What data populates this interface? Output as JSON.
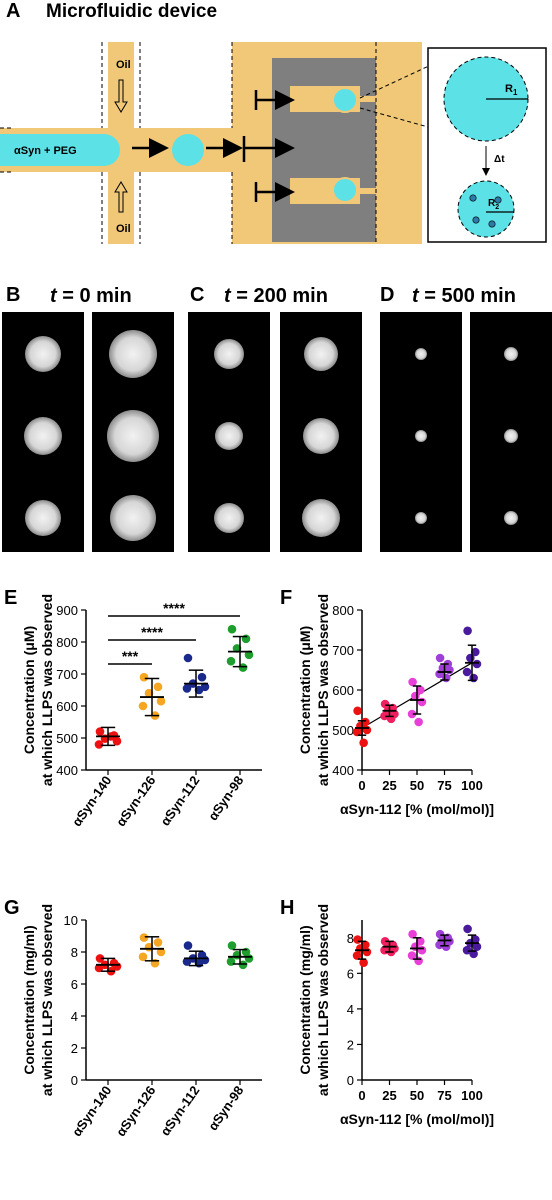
{
  "panel_a": {
    "letter": "A",
    "title": "Microfluidic device",
    "labels": {
      "oil_top": "Oil",
      "oil_bottom": "Oil",
      "inlet": "αSyn + PEG",
      "r1": "R",
      "r1_sub": "1",
      "r2": "R",
      "r2_sub": "2",
      "dt": "Δt"
    },
    "colors": {
      "channel": "#F0C878",
      "droplet": "#5CE1E6",
      "chamber": "#7F7F7F"
    }
  },
  "panel_b": {
    "letter": "B",
    "t_var": "t",
    "t_rest": " = 0 min",
    "droplet_sizes": [
      [
        18,
        24
      ],
      [
        19,
        26
      ],
      [
        18,
        23
      ]
    ]
  },
  "panel_c": {
    "letter": "C",
    "t_var": "t",
    "t_rest": " = 200 min",
    "droplet_sizes": [
      [
        15,
        17
      ],
      [
        14,
        18
      ],
      [
        15,
        19
      ]
    ]
  },
  "panel_d": {
    "letter": "D",
    "t_var": "t",
    "t_rest": " = 500 min",
    "droplet_sizes": [
      [
        6,
        7
      ],
      [
        6,
        7
      ],
      [
        6,
        7
      ]
    ]
  },
  "chart_data": [
    {
      "id": "E",
      "letter": "E",
      "type": "scatter",
      "ylabel_line1": "Concentration (μM)",
      "ylabel_line2": "at which LLPS was observed",
      "ylim": [
        400,
        900
      ],
      "yticks": [
        400,
        500,
        600,
        700,
        800,
        900
      ],
      "categories": [
        "αSyn-140",
        "αSyn-126",
        "αSyn-112",
        "αSyn-98"
      ],
      "colors": [
        "#EE1111",
        "#F5A623",
        "#1A2A8C",
        "#1E9E2E"
      ],
      "points": [
        [
          520,
          508,
          498,
          490,
          480,
          505
        ],
        [
          690,
          660,
          640,
          615,
          600,
          570
        ],
        [
          750,
          690,
          670,
          660,
          655,
          650
        ],
        [
          840,
          810,
          780,
          760,
          740,
          720
        ]
      ],
      "means": [
        505,
        628,
        670,
        770
      ],
      "sds": [
        28,
        58,
        42,
        47
      ],
      "significance": [
        {
          "from": 0,
          "to": 3,
          "label": "****"
        },
        {
          "from": 0,
          "to": 2,
          "label": "****"
        },
        {
          "from": 0,
          "to": 1,
          "label": "***"
        }
      ]
    },
    {
      "id": "F",
      "letter": "F",
      "type": "scatter",
      "ylabel_line1": "Concentration (μM)",
      "ylabel_line2": "at which LLPS was observed",
      "xlabel": "αSyn-112 [% (mol/mol)]",
      "ylim": [
        400,
        800
      ],
      "yticks": [
        400,
        500,
        600,
        700,
        800
      ],
      "xlim": [
        0,
        100
      ],
      "xticks": [
        0,
        25,
        50,
        75,
        100
      ],
      "colors": [
        "#EE1111",
        "#F02060",
        "#E83FD8",
        "#9E3FD8",
        "#4A1A9C"
      ],
      "x": [
        0,
        25,
        50,
        75,
        100
      ],
      "points": [
        [
          548,
          520,
          510,
          500,
          495,
          468
        ],
        [
          565,
          555,
          548,
          540,
          535,
          528
        ],
        [
          620,
          600,
          585,
          570,
          540,
          520
        ],
        [
          680,
          665,
          655,
          650,
          640,
          630
        ],
        [
          748,
          695,
          680,
          665,
          645,
          630
        ]
      ],
      "means": [
        505,
        548,
        575,
        645,
        668
      ],
      "sds": [
        18,
        14,
        35,
        20,
        44
      ],
      "fit": {
        "x": [
          0,
          100
        ],
        "y": [
          505,
          668
        ]
      }
    },
    {
      "id": "G",
      "letter": "G",
      "type": "scatter",
      "ylabel_line1": "Concentration (mg/ml)",
      "ylabel_line2": "at which LLPS was observed",
      "ylim": [
        0,
        10
      ],
      "yticks": [
        0,
        2,
        4,
        6,
        8,
        10
      ],
      "categories": [
        "αSyn-140",
        "αSyn-126",
        "αSyn-112",
        "αSyn-98"
      ],
      "colors": [
        "#EE1111",
        "#F5A623",
        "#1A2A8C",
        "#1E9E2E"
      ],
      "points": [
        [
          7.6,
          7.3,
          7.2,
          7.1,
          7.0,
          6.8
        ],
        [
          8.9,
          8.6,
          8.3,
          8.0,
          7.7,
          7.3
        ],
        [
          8.4,
          7.8,
          7.6,
          7.5,
          7.4,
          7.3
        ],
        [
          8.4,
          8.0,
          7.8,
          7.6,
          7.4,
          7.2
        ]
      ],
      "means": [
        7.2,
        8.2,
        7.6,
        7.7
      ],
      "sds": [
        0.4,
        0.75,
        0.45,
        0.45
      ]
    },
    {
      "id": "H",
      "letter": "H",
      "type": "scatter",
      "ylabel_line1": "Concentration (mg/ml)",
      "ylabel_line2": "at which LLPS was observed",
      "xlabel": "αSyn-112 [% (mol/mol)]",
      "ylim": [
        0,
        9
      ],
      "yticks": [
        0,
        2,
        4,
        6,
        8
      ],
      "xlim": [
        0,
        100
      ],
      "xticks": [
        0,
        25,
        50,
        75,
        100
      ],
      "colors": [
        "#EE1111",
        "#F02060",
        "#E83FD8",
        "#9E3FD8",
        "#4A1A9C"
      ],
      "x": [
        0,
        25,
        50,
        75,
        100
      ],
      "points": [
        [
          7.9,
          7.6,
          7.4,
          7.2,
          7.0,
          6.6
        ],
        [
          7.8,
          7.6,
          7.5,
          7.4,
          7.3,
          7.2
        ],
        [
          8.2,
          7.8,
          7.5,
          7.3,
          7.0,
          6.7
        ],
        [
          8.2,
          8.0,
          7.9,
          7.8,
          7.6,
          7.5
        ],
        [
          8.5,
          7.9,
          7.7,
          7.5,
          7.3,
          7.1
        ]
      ],
      "means": [
        7.3,
        7.5,
        7.4,
        7.85,
        7.7
      ],
      "sds": [
        0.5,
        0.3,
        0.6,
        0.3,
        0.45
      ]
    }
  ]
}
